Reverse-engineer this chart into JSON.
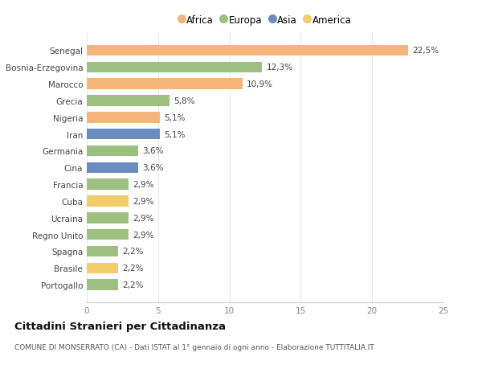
{
  "countries": [
    "Portogallo",
    "Brasile",
    "Spagna",
    "Regno Unito",
    "Ucraina",
    "Cuba",
    "Francia",
    "Cina",
    "Germania",
    "Iran",
    "Nigeria",
    "Grecia",
    "Marocco",
    "Bosnia-Erzegovina",
    "Senegal"
  ],
  "values": [
    2.2,
    2.2,
    2.2,
    2.9,
    2.9,
    2.9,
    2.9,
    3.6,
    3.6,
    5.1,
    5.1,
    5.8,
    10.9,
    12.3,
    22.5
  ],
  "labels": [
    "2,2%",
    "2,2%",
    "2,2%",
    "2,9%",
    "2,9%",
    "2,9%",
    "2,9%",
    "3,6%",
    "3,6%",
    "5,1%",
    "5,1%",
    "5,8%",
    "10,9%",
    "12,3%",
    "22,5%"
  ],
  "continents": [
    "Europa",
    "America",
    "Europa",
    "Europa",
    "Europa",
    "America",
    "Europa",
    "Asia",
    "Europa",
    "Asia",
    "Africa",
    "Europa",
    "Africa",
    "Europa",
    "Africa"
  ],
  "colors": {
    "Africa": "#F5B57A",
    "Europa": "#9DC080",
    "Asia": "#6B8CC2",
    "America": "#F2CC6B"
  },
  "legend_order": [
    "Africa",
    "Europa",
    "Asia",
    "America"
  ],
  "xlim": [
    0,
    25
  ],
  "xticks": [
    0,
    5,
    10,
    15,
    20,
    25
  ],
  "title": "Cittadini Stranieri per Cittadinanza",
  "subtitle": "COMUNE DI MONSERRATO (CA) - Dati ISTAT al 1° gennaio di ogni anno - Elaborazione TUTTITALIA.IT",
  "background_color": "#ffffff",
  "grid_color": "#e8e8e8"
}
